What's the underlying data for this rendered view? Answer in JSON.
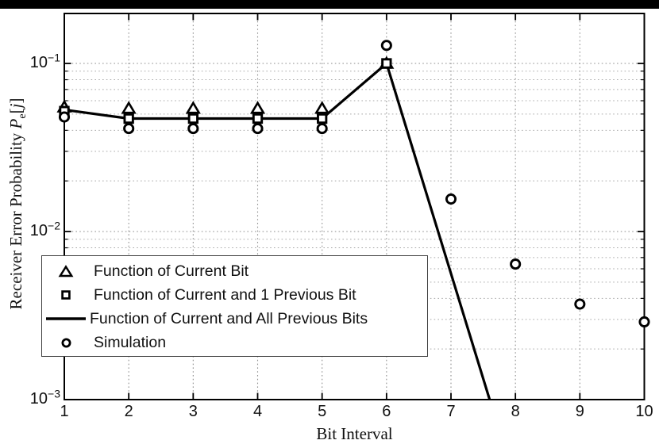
{
  "chrome": {
    "top_bar_color": "#000000",
    "background": "#ffffff"
  },
  "chart_data": {
    "type": "line",
    "title": "",
    "xlabel": "Bit Interval",
    "ylabel": {
      "prefix": "Receiver Error Probability",
      "math_p": "P",
      "sub": "e",
      "open_bracket": "[",
      "math_j": "j",
      "close_bracket": "]"
    },
    "xlim": [
      1,
      10
    ],
    "ylim": [
      0.001,
      0.196
    ],
    "yscale": "log",
    "x_ticks": [
      1,
      2,
      3,
      4,
      5,
      6,
      7,
      8,
      9,
      10
    ],
    "y_tick_base": "10",
    "y_tick_exponents": [
      -1,
      -2,
      -3
    ],
    "grid": {
      "style": "dotted",
      "major": true,
      "minor": true
    },
    "legend": {
      "position": "lower-left",
      "border_color": "#3f3f3f",
      "background": "#ffffff"
    },
    "line_color": "#000000",
    "series": [
      {
        "name": "Function of Current Bit",
        "marker": "triangle",
        "line": "none",
        "color": "#000000",
        "x": [
          1,
          2,
          3,
          4,
          5,
          6
        ],
        "y": [
          0.055,
          0.054,
          0.054,
          0.054,
          0.054,
          0.1
        ]
      },
      {
        "name": "Function of Current and 1 Previous Bit",
        "marker": "square",
        "line": "none",
        "color": "#000000",
        "x": [
          1,
          2,
          3,
          4,
          5,
          6
        ],
        "y": [
          0.052,
          0.047,
          0.047,
          0.047,
          0.047,
          0.1
        ]
      },
      {
        "name": "Function of Current and All Previous Bits",
        "marker": "none",
        "line": "solid",
        "color": "#000000",
        "x": [
          1,
          2,
          3,
          4,
          5,
          6,
          7.6
        ],
        "y": [
          0.053,
          0.047,
          0.047,
          0.047,
          0.047,
          0.1,
          0.001
        ],
        "note": "descends off the bottom axis near x = 7.6"
      },
      {
        "name": "Simulation",
        "marker": "circle",
        "line": "none",
        "color": "#000000",
        "x": [
          1,
          2,
          3,
          4,
          5,
          6,
          7,
          8,
          9,
          10
        ],
        "y": [
          0.048,
          0.041,
          0.041,
          0.041,
          0.041,
          0.128,
          0.0156,
          0.0064,
          0.0037,
          0.0029
        ]
      }
    ]
  }
}
